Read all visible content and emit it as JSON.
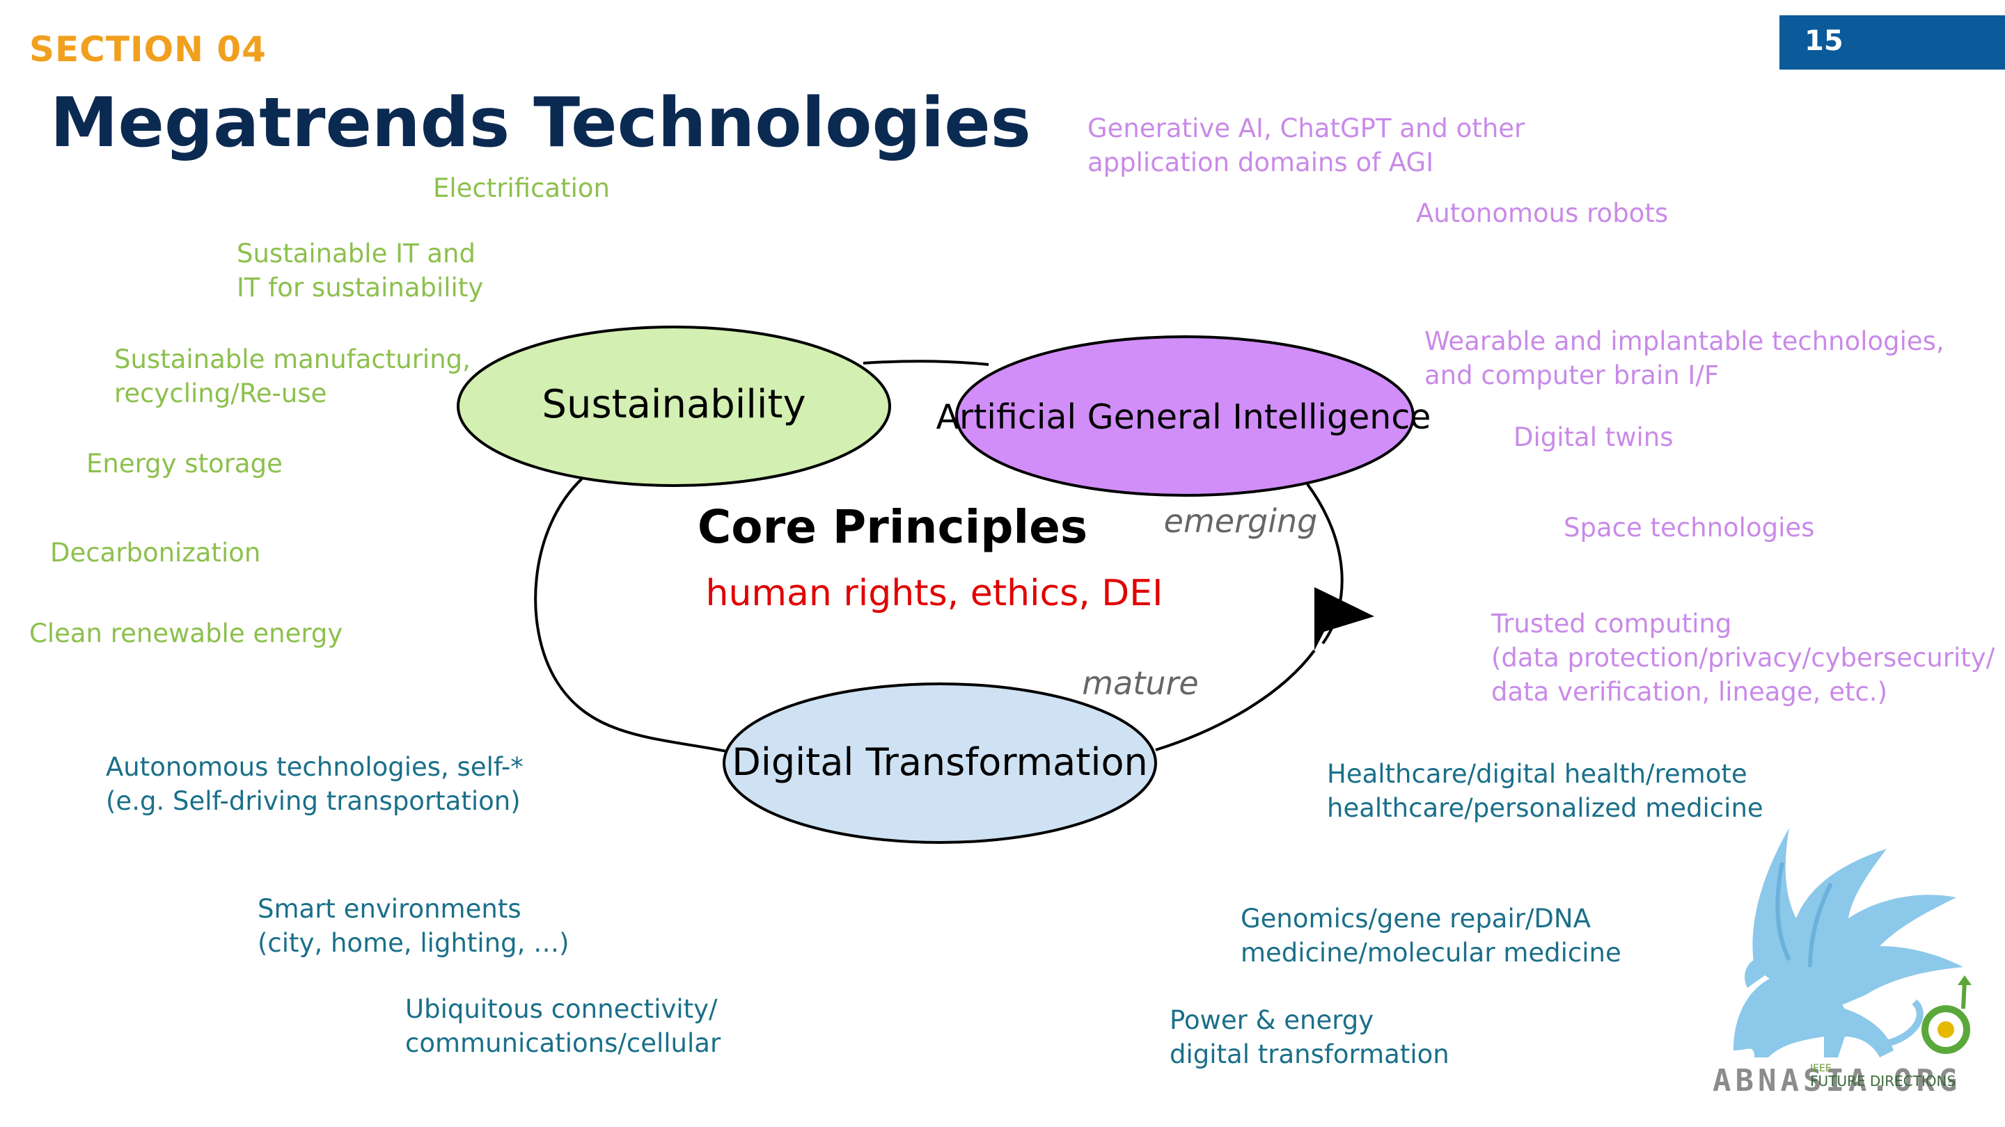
{
  "header": {
    "section": "SECTION 04",
    "title": "Megatrends Technologies",
    "page_number": "15"
  },
  "diagram": {
    "nodes": {
      "sustainability": "Sustainability",
      "agi": "Artificial General Intelligence",
      "digital_transformation": "Digital Transformation"
    },
    "core_title": "Core Principles",
    "core_subtitle": "human rights, ethics, DEI",
    "emerging_label": "emerging",
    "mature_label": "mature"
  },
  "green_items": [
    [
      "Electrification"
    ],
    [
      "Sustainable IT and",
      "IT for sustainability"
    ],
    [
      "Sustainable manufacturing,",
      "recycling/Re-use"
    ],
    [
      "Energy storage"
    ],
    [
      "Decarbonization"
    ],
    [
      "Clean renewable energy"
    ]
  ],
  "purple_items": [
    [
      "Generative AI, ChatGPT and other",
      "application domains of AGI"
    ],
    [
      "Autonomous robots"
    ],
    [
      "Wearable and implantable technologies,",
      "and computer brain I/F"
    ],
    [
      "Digital twins"
    ],
    [
      "Space technologies"
    ],
    [
      "Trusted computing",
      "(data protection/privacy/cybersecurity/",
      "data verification, lineage, etc.)"
    ]
  ],
  "teal_items": [
    [
      "Autonomous technologies, self-*",
      "(e.g. Self-driving transportation)"
    ],
    [
      "Smart environments",
      "(city, home, lighting, …)"
    ],
    [
      "Ubiquitous connectivity/",
      "communications/cellular"
    ],
    [
      "Healthcare/digital health/remote",
      "healthcare/personalized medicine"
    ],
    [
      "Genomics/gene repair/DNA",
      "medicine/molecular medicine"
    ],
    [
      "Power & energy",
      "digital transformation"
    ]
  ],
  "logo": {
    "text": "ABNASIA.ORG",
    "ieee": "IEEE",
    "sub": "FUTURE DIRECTIONS"
  },
  "colors": {
    "section": "#f0a01e",
    "title": "#0b2a52",
    "page_box": "#0b5a9a",
    "green_text": "#8cc04c",
    "purple_text": "#c98ae8",
    "teal_text": "#1a6f89",
    "sustainability_fill": "#d3efb1",
    "agi_fill": "#d18ef9",
    "digital_fill": "#cfe2f3",
    "core_subtitle": "#e00000"
  }
}
